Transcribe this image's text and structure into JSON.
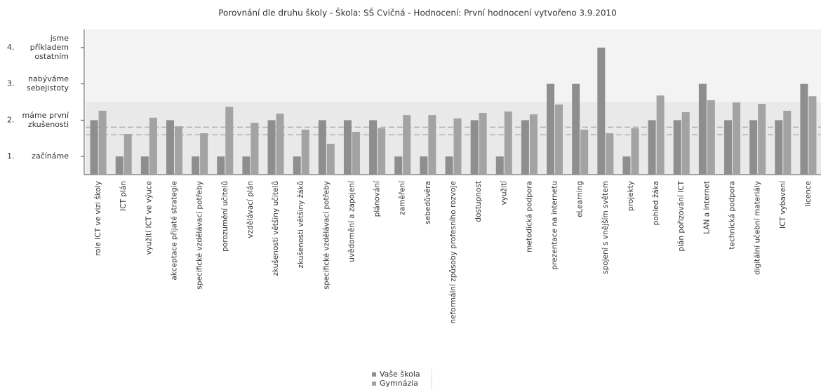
{
  "chart_data": {
    "type": "bar",
    "title": "Porovnání dle druhu školy - Škola: SŠ Cvičná - Hodnocení: První hodnocení vytvořeno 3.9.2010",
    "categories": [
      "role ICT ve vizi školy",
      "ICT plán",
      "využití ICT ve výuce",
      "akceptace přijaté strategie",
      "specifické vzdělávací potřeby",
      "porozumění učitelů",
      "vzdělávací plán",
      "zkušenosti většiny učitelů",
      "zkušenosti většiny žáků",
      "specifické vzdělávací potřeby",
      "uvědomění a zapojení",
      "plánování",
      "zaměření",
      "sebedůvěra",
      "neformální způsoby profesního rozvoje",
      "dostupnost",
      "využití",
      "metodická podpora",
      "prezentace na internetu",
      "eLearning",
      "spojení s vnějším světem",
      "projekty",
      "pohled žáka",
      "plán pořizování ICT",
      "LAN a internet",
      "technická podpora",
      "digitální učební materiály",
      "ICT vybavení",
      "licence"
    ],
    "series": [
      {
        "name": "Vaše škola",
        "color": "#8e8e8e",
        "values": [
          2,
          1,
          1,
          2,
          1,
          1,
          1,
          2,
          1,
          2,
          2,
          2,
          1,
          1,
          1,
          2,
          1,
          2,
          3,
          3,
          4,
          1,
          2,
          2,
          3,
          2,
          2,
          2,
          3
        ]
      },
      {
        "name": "Gymnázia",
        "color": "#a3a3a3",
        "values": [
          2.26,
          1.62,
          2.07,
          1.83,
          1.64,
          2.37,
          1.93,
          2.18,
          1.74,
          1.35,
          1.68,
          1.78,
          2.14,
          2.14,
          2.05,
          2.2,
          2.24,
          2.16,
          2.43,
          1.74,
          1.64,
          1.78,
          2.68,
          2.22,
          2.55,
          2.49,
          2.45,
          2.26,
          2.66
        ]
      }
    ],
    "reference_lines": [
      1.81,
      1.6
    ],
    "ylim": [
      0.5,
      4.5
    ],
    "yticks": [
      {
        "value": 1,
        "label": "1.",
        "text": "začínáme"
      },
      {
        "value": 2,
        "label": "2.",
        "text": "máme první zkušenosti"
      },
      {
        "value": 3,
        "label": "3.",
        "text": "nabýváme sebejistoty"
      },
      {
        "value": 4,
        "label": "4.",
        "text": "jsme příkladem ostatním"
      }
    ]
  }
}
